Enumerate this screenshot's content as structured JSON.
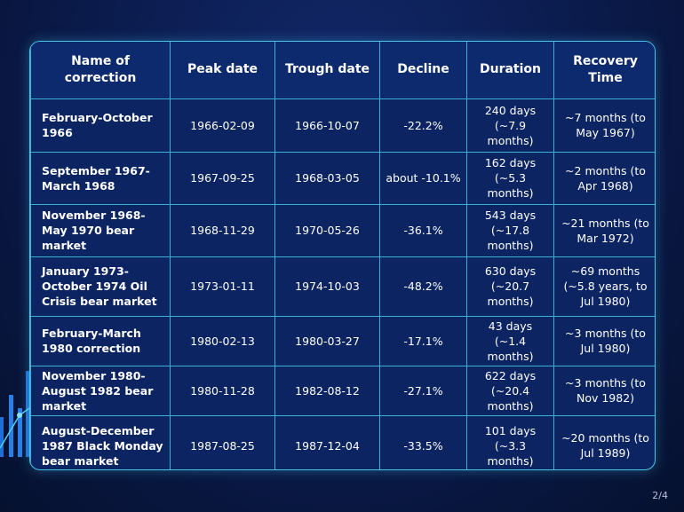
{
  "table": {
    "header": [
      "Name of correction",
      "Peak date",
      "Trough date",
      "Decline",
      "Duration",
      "Recovery Time"
    ],
    "rows": [
      [
        "February-October 1966",
        "1966-02-09",
        "1966-10-07",
        "-22.2%",
        "240 days (~7.9 months)",
        "~7 months (to May 1967)"
      ],
      [
        "September 1967-March 1968",
        "1967-09-25",
        "1968-03-05",
        "about -10.1%",
        "162 days (~5.3 months)",
        "~2 months (to Apr 1968)"
      ],
      [
        "November 1968-May 1970 bear market",
        "1968-11-29",
        "1970-05-26",
        "-36.1%",
        "543 days (~17.8 months)",
        "~21 months (to Mar 1972)"
      ],
      [
        "January 1973-October 1974 Oil Crisis bear market",
        "1973-01-11",
        "1974-10-03",
        "-48.2%",
        "630 days (~20.7 months)",
        "~69 months (~5.8 years, to Jul 1980)"
      ],
      [
        "February-March 1980 correction",
        "1980-02-13",
        "1980-03-27",
        "-17.1%",
        "43 days (~1.4 months)",
        "~3 months (to Jul 1980)"
      ],
      [
        "November 1980-August 1982 bear market",
        "1980-11-28",
        "1982-08-12",
        "-27.1%",
        "622 days (~20.4 months)",
        "~3 months (to Nov 1982)"
      ],
      [
        "August-December 1987 Black Monday bear market",
        "1987-08-25",
        "1987-12-04",
        "-33.5%",
        "101 days (~3.3 months)",
        "~20 months (to Jul 1989)"
      ]
    ]
  },
  "page_number": "2/4"
}
